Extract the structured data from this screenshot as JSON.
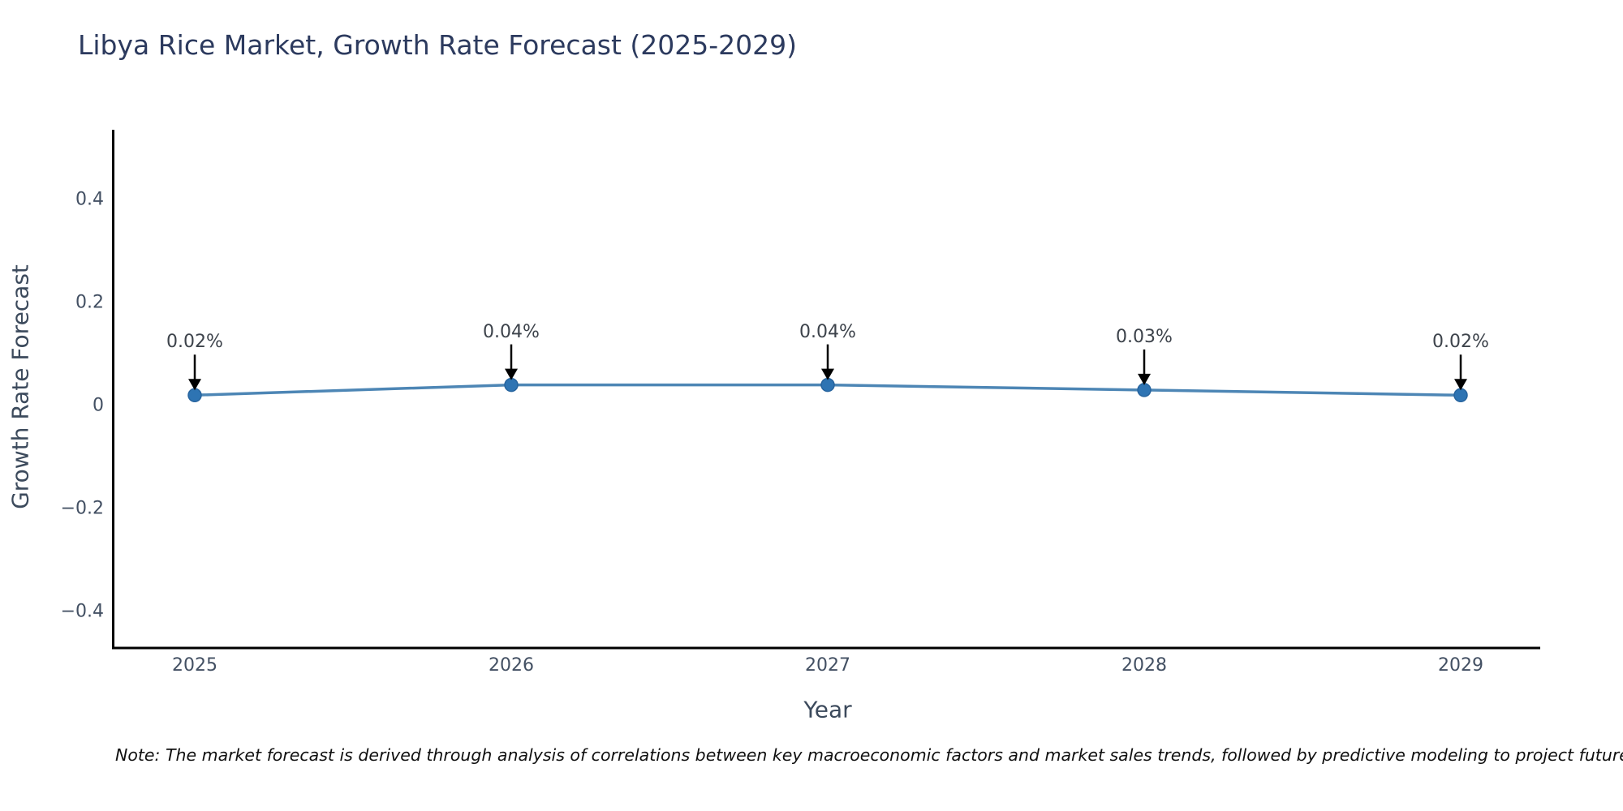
{
  "page": {
    "background": "#ffffff"
  },
  "chart_data": {
    "type": "line",
    "title": "Libya Rice Market, Growth Rate Forecast (2025-2029)",
    "xlabel": "Year",
    "ylabel": "Growth Rate Forecast",
    "categories": [
      "2025",
      "2026",
      "2027",
      "2028",
      "2029"
    ],
    "series": [
      {
        "name": "Growth Rate Forecast",
        "values": [
          0.02,
          0.04,
          0.04,
          0.03,
          0.02
        ]
      }
    ],
    "point_labels": [
      "0.02%",
      "0.04%",
      "0.04%",
      "0.03%",
      "0.02%"
    ],
    "y_ticks": [
      "0.4",
      "0.2",
      "0",
      "−0.2",
      "−0.4"
    ],
    "y_tick_values": [
      0.4,
      0.2,
      0,
      -0.2,
      -0.4
    ],
    "ylim": [
      -0.5,
      0.5
    ],
    "grid": "off",
    "legend": "none",
    "annotation_style": "downward-black-arrow-to-point",
    "colors": {
      "line": "#4d86b5",
      "marker": "#2e74b3",
      "marker_edge": "#27649e",
      "arrow": "#000000",
      "axis": "#000000",
      "title_text": "#2c3a5e",
      "tick_text": "#435063",
      "annotation_text": "#3d434b"
    }
  },
  "note": {
    "text": "Note: The market forecast is derived through analysis of correlations between key macroeconomic factors and market sales trends, followed by predictive modeling to project future sales."
  }
}
